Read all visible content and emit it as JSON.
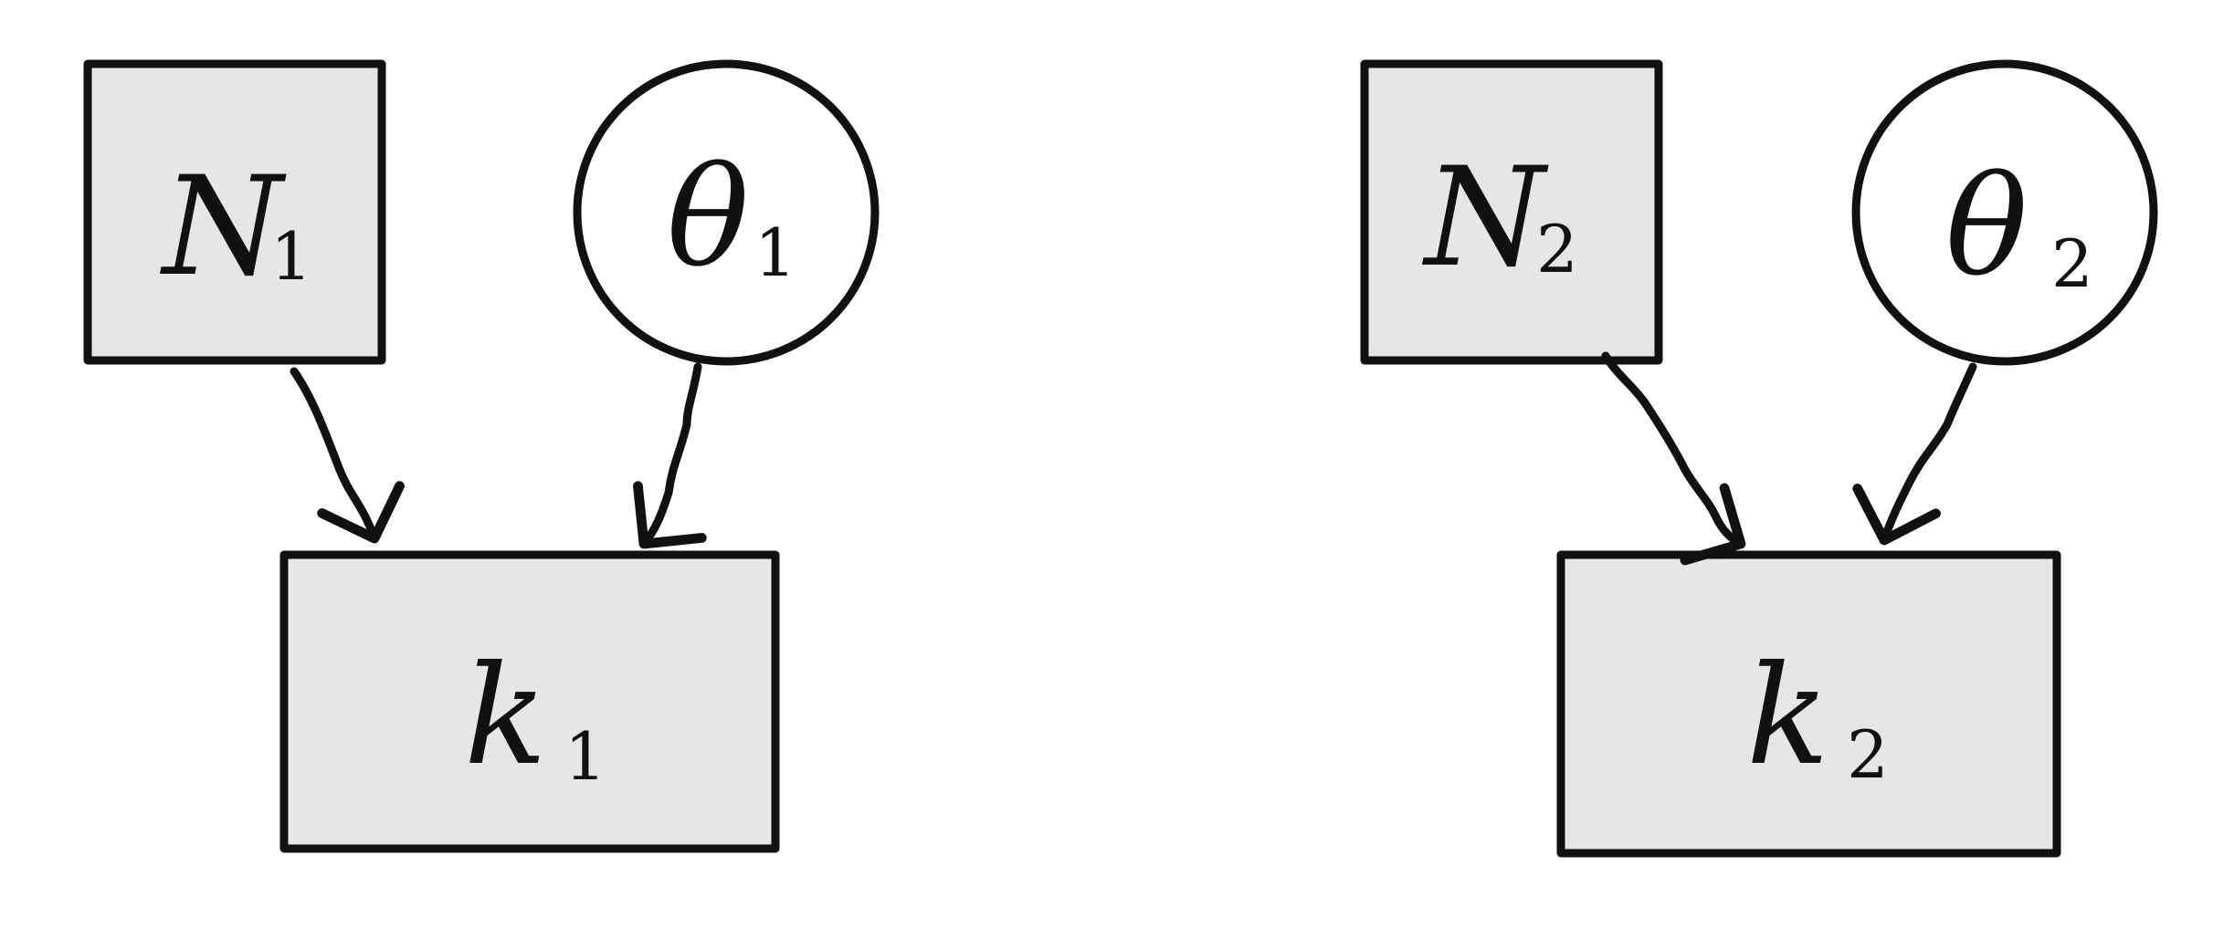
{
  "diagram": {
    "type": "graphical-model",
    "colors": {
      "stroke": "#111111",
      "box_fill": "#e6e6e6",
      "circle_fill": "#ffffff"
    },
    "nodes": {
      "n1": {
        "symbol": "N",
        "subscript": "1",
        "shape": "box"
      },
      "theta1": {
        "symbol": "θ",
        "subscript": "1",
        "shape": "circle"
      },
      "k1": {
        "symbol": "k",
        "subscript": "1",
        "shape": "box"
      },
      "n2": {
        "symbol": "N",
        "subscript": "2",
        "shape": "box"
      },
      "theta2": {
        "symbol": "θ",
        "subscript": "2",
        "shape": "circle"
      },
      "k2": {
        "symbol": "k",
        "subscript": "2",
        "shape": "box"
      }
    },
    "edges": [
      {
        "from": "N1",
        "to": "k1"
      },
      {
        "from": "θ1",
        "to": "k1"
      },
      {
        "from": "N2",
        "to": "k2"
      },
      {
        "from": "θ2",
        "to": "k2"
      }
    ]
  }
}
